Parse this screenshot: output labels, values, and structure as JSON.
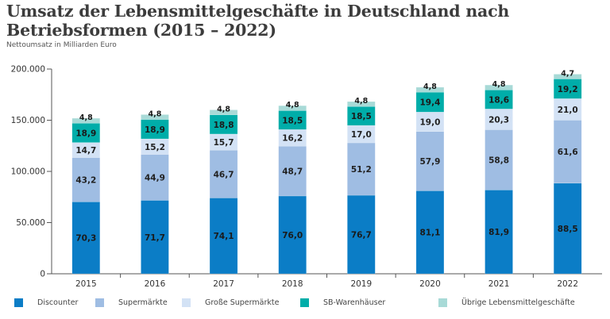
{
  "header": {
    "title_line1": "Umsatz der Lebensmittelgeschäfte in Deutschland nach",
    "title_line2": "Betriebsformen (2015 – 2022)",
    "subtitle": "Nettoumsatz in Milliarden Euro"
  },
  "chart_data": {
    "type": "bar",
    "stacked": true,
    "title": "Umsatz der Lebensmittelgeschäfte in Deutschland nach Betriebsformen (2015 – 2022)",
    "subtitle": "Nettoumsatz in Milliarden Euro",
    "xlabel": "",
    "ylabel": "",
    "categories": [
      "2015",
      "2016",
      "2017",
      "2018",
      "2019",
      "2020",
      "2021",
      "2022"
    ],
    "ylim": [
      0,
      200
    ],
    "yticks": [
      0,
      50,
      100,
      150,
      200
    ],
    "ytick_labels": [
      "0",
      "50.000",
      "100.000",
      "150.000",
      "200.000"
    ],
    "grid": false,
    "legend_position": "bottom",
    "series": [
      {
        "name": "Discounter",
        "color": "#0b7dc6",
        "label_color": "#1a1a1a",
        "values": [
          70.3,
          71.7,
          74.1,
          76.0,
          76.7,
          81.1,
          81.9,
          88.5
        ],
        "labels": [
          "70,3",
          "71,7",
          "74,1",
          "76,0",
          "76,7",
          "81,1",
          "81,9",
          "88,5"
        ]
      },
      {
        "name": "Supermärkte",
        "color": "#9fbde3",
        "label_color": "#222222",
        "values": [
          43.2,
          44.9,
          46.7,
          48.7,
          51.2,
          57.9,
          58.8,
          61.6
        ],
        "labels": [
          "43,2",
          "44,9",
          "46,7",
          "48,7",
          "51,2",
          "57,9",
          "58,8",
          "61,6"
        ]
      },
      {
        "name": "Große Supermärkte",
        "color": "#d3e2f5",
        "label_color": "#222222",
        "values": [
          14.7,
          15.2,
          15.7,
          16.2,
          17.0,
          19.0,
          20.3,
          21.0
        ],
        "labels": [
          "14,7",
          "15,2",
          "15,7",
          "16,2",
          "17,0",
          "19,0",
          "20,3",
          "21,0"
        ]
      },
      {
        "name": "SB-Warenhäuser",
        "color": "#00ada9",
        "label_color": "#1a1a1a",
        "values": [
          18.9,
          18.9,
          18.8,
          18.5,
          18.5,
          19.4,
          18.6,
          19.2
        ],
        "labels": [
          "18,9",
          "18,9",
          "18,8",
          "18,5",
          "18,5",
          "19,4",
          "18,6",
          "19,2"
        ]
      },
      {
        "name": "Übrige Lebensmittelgeschäfte",
        "color": "#a8dad7",
        "label_color": "#1a1a1a",
        "values": [
          4.8,
          4.8,
          4.8,
          4.8,
          4.8,
          4.8,
          4.8,
          4.7
        ],
        "labels": [
          "4,8",
          "4,8",
          "4,8",
          "4,8",
          "4,8",
          "4,8",
          "4,8",
          "4,7"
        ]
      }
    ]
  }
}
